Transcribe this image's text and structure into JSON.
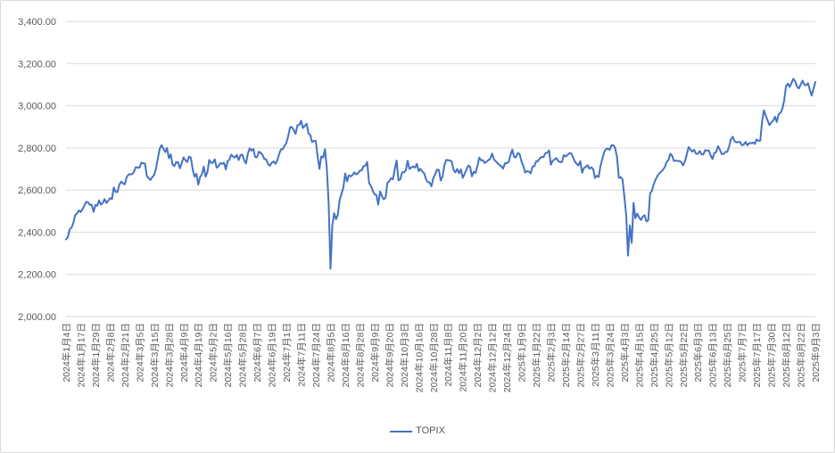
{
  "chart_data": {
    "type": "line",
    "title": "",
    "xlabel": "",
    "ylabel": "",
    "grid": true,
    "legend_position": "bottom-center",
    "y_axis": {
      "min": 2000,
      "max": 3400,
      "step": 200,
      "tick_labels": [
        "2,000.00",
        "2,200.00",
        "2,400.00",
        "2,600.00",
        "2,800.00",
        "3,000.00",
        "3,200.00",
        "3,400.00"
      ]
    },
    "x_axis": {
      "points_per_tick": 8,
      "tick_labels": [
        "2024年1月4日",
        "2024年1月17日",
        "2024年1月29日",
        "2024年2月8日",
        "2024年2月21日",
        "2024年3月5日",
        "2024年3月15日",
        "2024年3月28日",
        "2024年4月9日",
        "2024年4月19日",
        "2024年5月2日",
        "2024年5月16日",
        "2024年5月28日",
        "2024年6月7日",
        "2024年6月19日",
        "2024年7月1日",
        "2024年7月11日",
        "2024年7月24日",
        "2024年8月5日",
        "2024年8月16日",
        "2024年8月28日",
        "2024年9月9日",
        "2024年9月20日",
        "2024年10月3日",
        "2024年10月16日",
        "2024年10月28日",
        "2024年11月8日",
        "2024年11月20日",
        "2024年12月2日",
        "2024年12月12日",
        "2024年12月24日",
        "2025年1月9日",
        "2025年1月22日",
        "2025年2月3日",
        "2025年2月14日",
        "2025年2月27日",
        "2025年3月11日",
        "2025年3月24日",
        "2025年4月3日",
        "2025年4月15日",
        "2025年4月25日",
        "2025年5月12日",
        "2025年5月22日",
        "2025年6月3日",
        "2025年6月13日",
        "2025年6月25日",
        "2025年7月7日",
        "2025年7月17日",
        "2025年7月30日",
        "2025年8月12日",
        "2025年8月22日",
        "2025年9月3日"
      ]
    },
    "series": [
      {
        "name": "TOPIX",
        "color": "#4472C4",
        "values": [
          2366,
          2377,
          2413,
          2422,
          2444,
          2482,
          2489,
          2503,
          2496,
          2510,
          2527,
          2544,
          2542,
          2529,
          2531,
          2497,
          2529,
          2526,
          2551,
          2531,
          2539,
          2557,
          2539,
          2549,
          2562,
          2557,
          2612,
          2591,
          2591,
          2625,
          2640,
          2632,
          2627,
          2661,
          2673,
          2675,
          2675,
          2686,
          2709,
          2707,
          2706,
          2730,
          2727,
          2726,
          2667,
          2657,
          2648,
          2662,
          2671,
          2702,
          2750,
          2796,
          2813,
          2798,
          2780,
          2799,
          2751,
          2769,
          2721,
          2714,
          2732,
          2732,
          2703,
          2728,
          2755,
          2742,
          2733,
          2759,
          2753,
          2697,
          2663,
          2677,
          2626,
          2662,
          2675,
          2711,
          2663,
          2686,
          2743,
          2729,
          2729,
          2746,
          2706,
          2713,
          2728,
          2724,
          2730,
          2698,
          2737,
          2745,
          2768,
          2759,
          2754,
          2767,
          2742,
          2766,
          2768,
          2741,
          2726,
          2772,
          2798,
          2787,
          2795,
          2757,
          2755,
          2782,
          2777,
          2767,
          2747,
          2746,
          2723,
          2715,
          2729,
          2736,
          2725,
          2740,
          2769,
          2793,
          2794,
          2810,
          2824,
          2857,
          2898,
          2899,
          2884,
          2867,
          2907,
          2909,
          2929,
          2894,
          2904,
          2915,
          2869,
          2861,
          2828,
          2833,
          2833,
          2758,
          2700,
          2760,
          2754,
          2794,
          2704,
          2538,
          2227,
          2434,
          2490,
          2462,
          2483,
          2554,
          2582,
          2612,
          2679,
          2641,
          2670,
          2665,
          2671,
          2684,
          2674,
          2680,
          2692,
          2693,
          2713,
          2716,
          2733,
          2633,
          2620,
          2597,
          2580,
          2576,
          2531,
          2593,
          2571,
          2556,
          2565,
          2635,
          2642,
          2656,
          2651,
          2699,
          2740,
          2646,
          2651,
          2684,
          2684,
          2694,
          2739,
          2700,
          2707,
          2712,
          2706,
          2724,
          2690,
          2701,
          2688,
          2679,
          2652,
          2637,
          2636,
          2618,
          2658,
          2674,
          2697,
          2696,
          2645,
          2664,
          2716,
          2743,
          2742,
          2740,
          2736,
          2695,
          2684,
          2700,
          2680,
          2698,
          2658,
          2676,
          2697,
          2716,
          2711,
          2665,
          2687,
          2681,
          2715,
          2754,
          2741,
          2742,
          2728,
          2735,
          2742,
          2749,
          2773,
          2746,
          2736,
          2727,
          2719,
          2713,
          2702,
          2727,
          2728,
          2733,
          2766,
          2792,
          2756,
          2756,
          2776,
          2770,
          2736,
          2714,
          2683,
          2690,
          2688,
          2679,
          2711,
          2713,
          2737,
          2737,
          2751,
          2758,
          2756,
          2775,
          2777,
          2788,
          2720,
          2739,
          2745,
          2752,
          2737,
          2733,
          2733,
          2766,
          2759,
          2766,
          2775,
          2775,
          2756,
          2736,
          2724,
          2717,
          2737,
          2682,
          2705,
          2710,
          2718,
          2701,
          2708,
          2700,
          2657,
          2668,
          2662,
          2715,
          2748,
          2780,
          2795,
          2796,
          2791,
          2812,
          2813,
          2799,
          2757,
          2658,
          2662,
          2650,
          2569,
          2482,
          2289,
          2432,
          2349,
          2539,
          2467,
          2488,
          2471,
          2458,
          2474,
          2481,
          2451,
          2457,
          2584,
          2596,
          2628,
          2650,
          2667,
          2679,
          2687,
          2696,
          2709,
          2733,
          2742,
          2772,
          2763,
          2738,
          2740,
          2738,
          2738,
          2732,
          2717,
          2737,
          2769,
          2804,
          2792,
          2782,
          2791,
          2772,
          2772,
          2785,
          2770,
          2769,
          2789,
          2787,
          2788,
          2764,
          2747,
          2777,
          2780,
          2808,
          2792,
          2771,
          2771,
          2781,
          2781,
          2805,
          2841,
          2853,
          2832,
          2826,
          2828,
          2828,
          2812,
          2816,
          2828,
          2812,
          2823,
          2822,
          2825,
          2819,
          2840,
          2834,
          2834,
          2926,
          2978,
          2952,
          2930,
          2908,
          2920,
          2929,
          2948,
          2923,
          2960,
          2966,
          2985,
          3024,
          3092,
          3105,
          3089,
          3108,
          3128,
          3116,
          3091,
          3082,
          3101,
          3119,
          3099,
          3097,
          3107,
          3075,
          3048,
          3082,
          3112
        ]
      }
    ]
  },
  "legend": {
    "label": "TOPIX"
  },
  "colors": {
    "line": "#4472C4",
    "gridline": "#D9D9D9",
    "axis_text": "#595959",
    "frame_border": "#D9D9D9",
    "background": "#FFFFFF"
  }
}
